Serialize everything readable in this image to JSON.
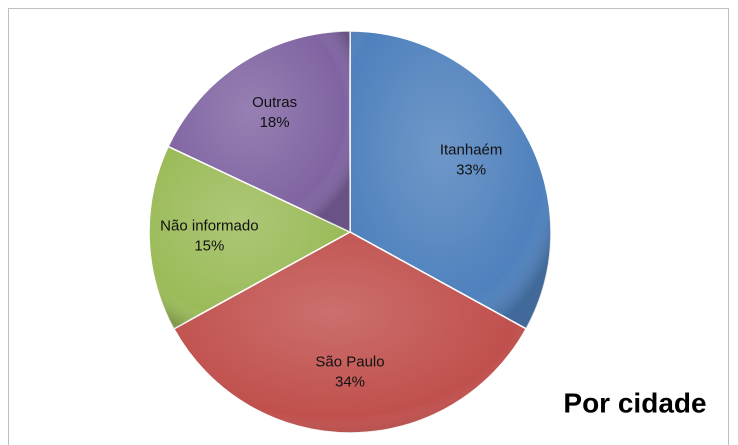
{
  "chart_data": {
    "type": "pie",
    "title": "Por cidade",
    "categories": [
      "Itanhaém",
      "São Paulo",
      "Não informado",
      "Outras"
    ],
    "values": [
      33,
      34,
      15,
      18
    ],
    "value_labels": [
      "33%",
      "34%",
      "15%",
      "18%"
    ],
    "colors": [
      "#4f81bd",
      "#c0504d",
      "#9bbb59",
      "#8064a2"
    ]
  }
}
